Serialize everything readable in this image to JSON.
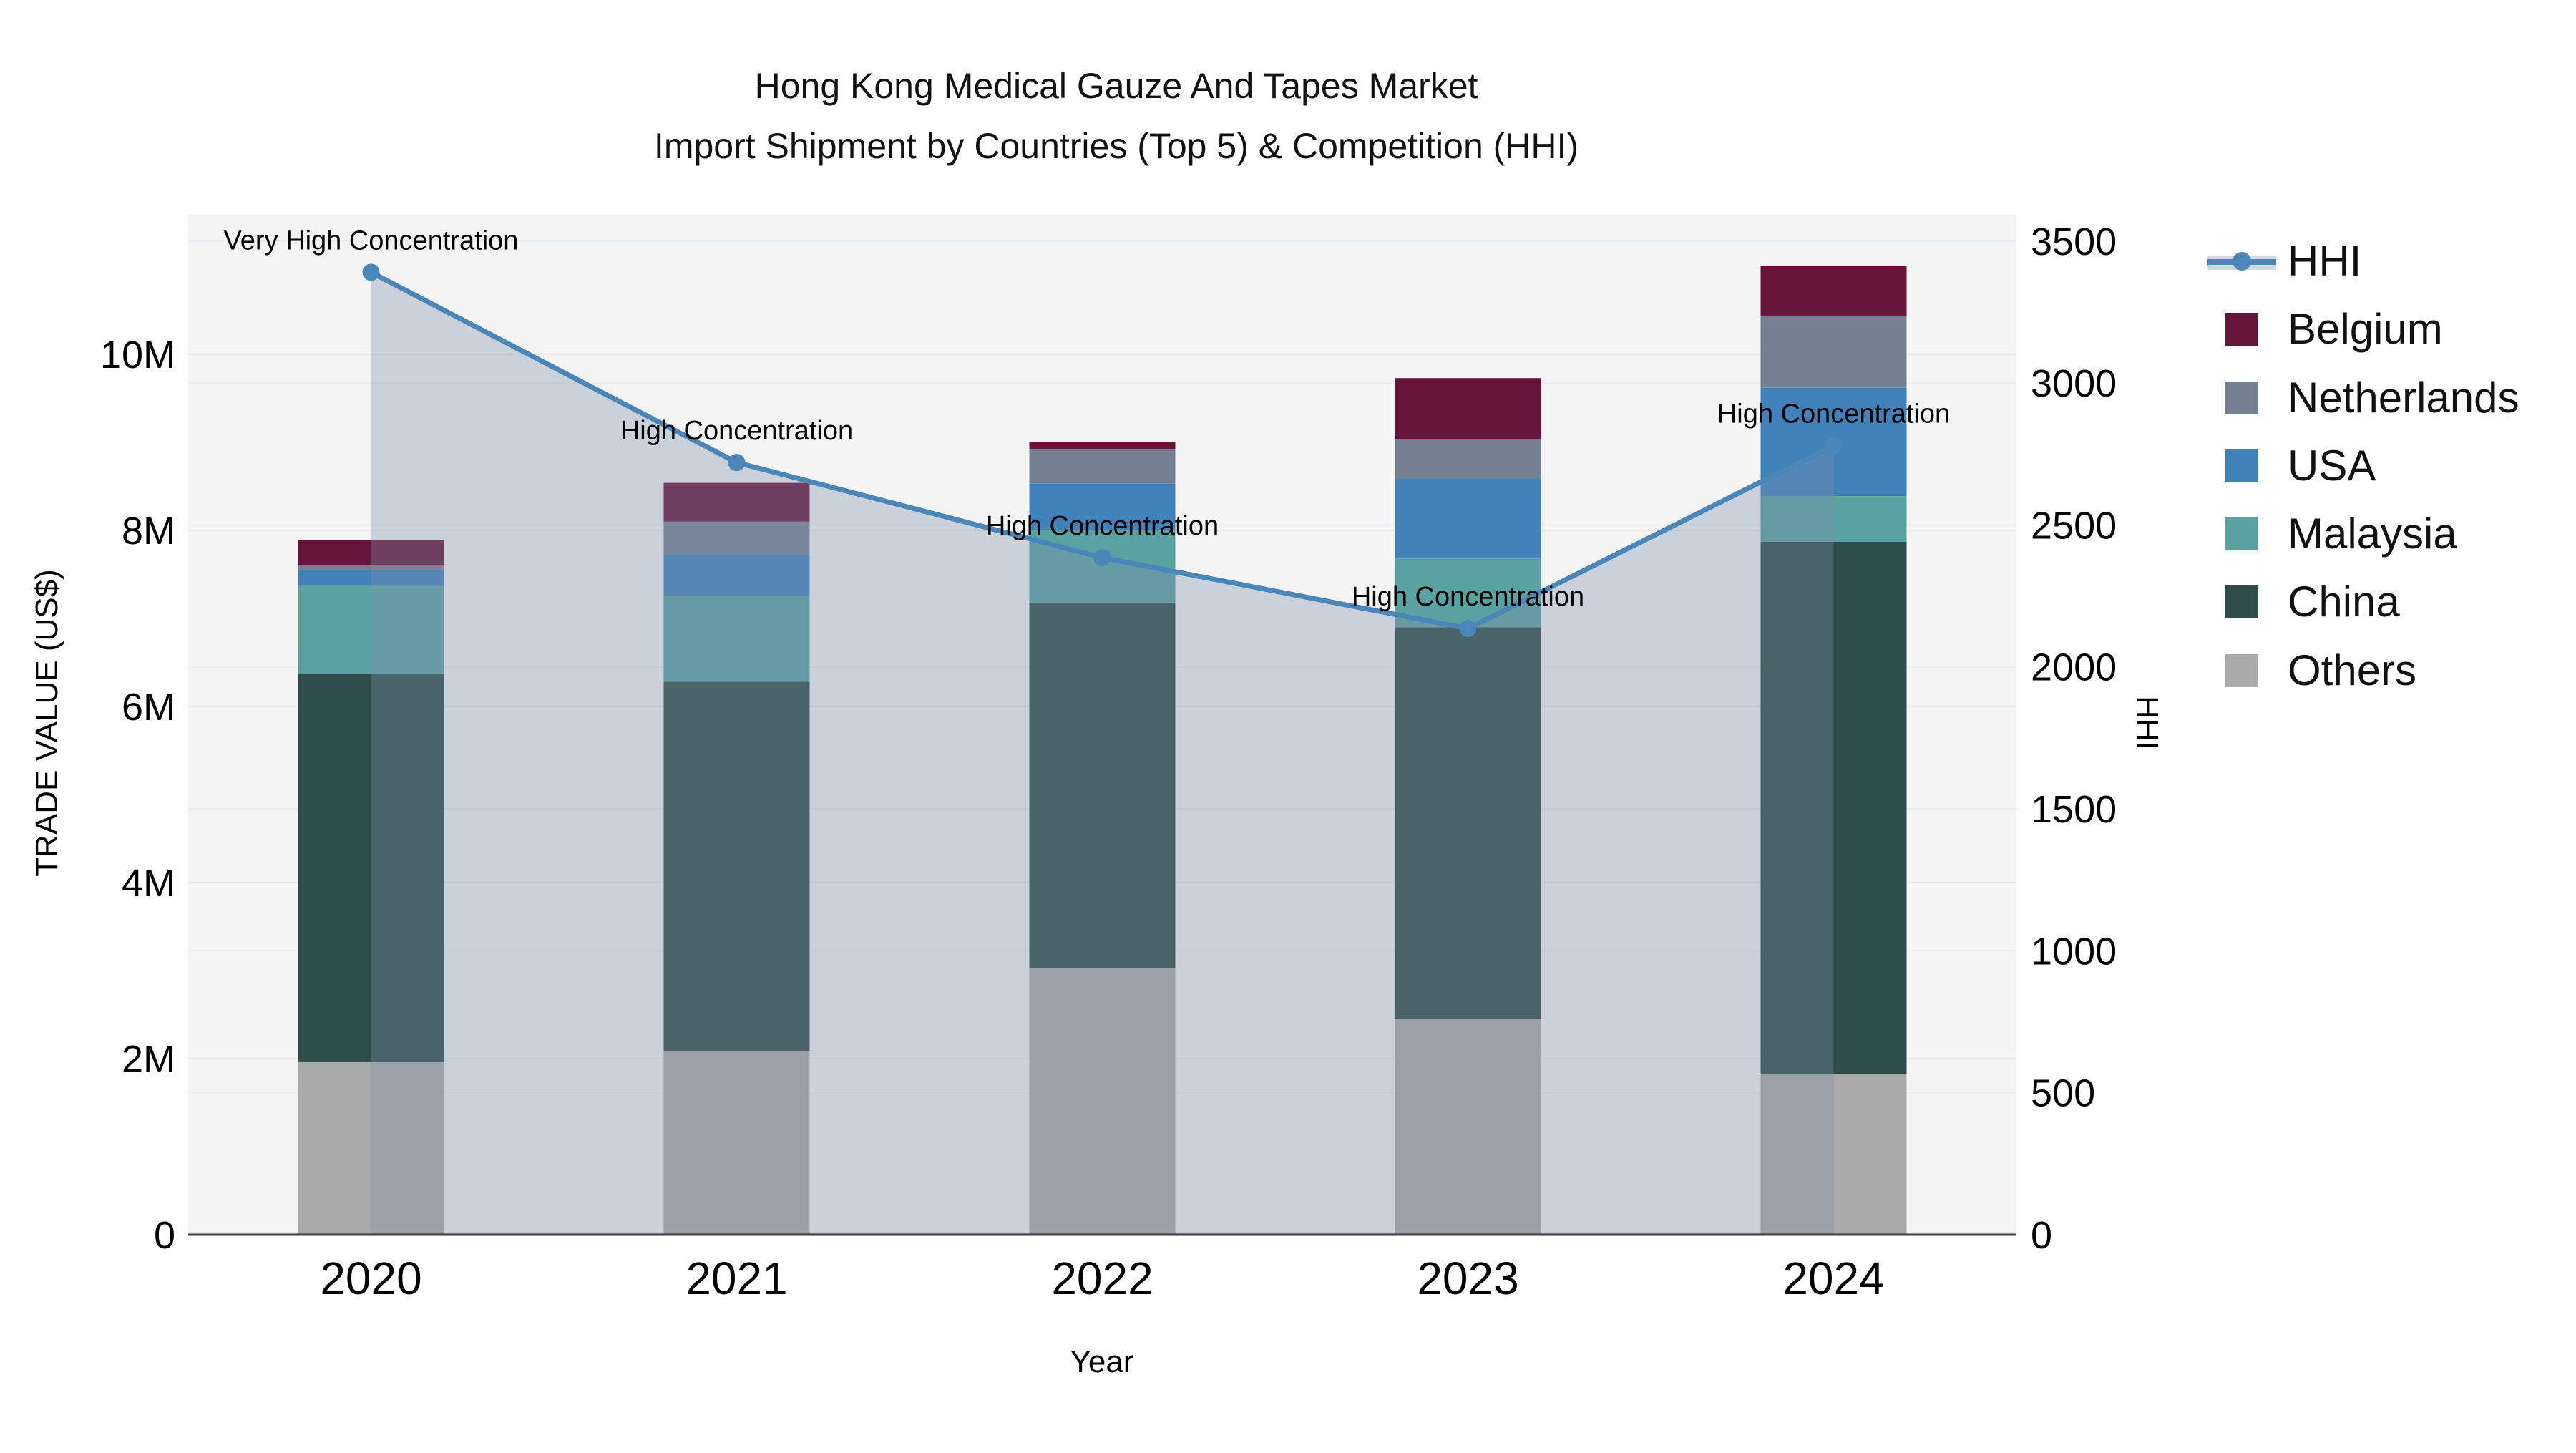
{
  "title": {
    "line1": "Hong Kong Medical Gauze And Tapes Market",
    "line2": "Import Shipment by Countries (Top 5) & Competition (HHI)"
  },
  "axes": {
    "left": {
      "title": "TRADE VALUE (US$)",
      "ticks": [
        {
          "label": "0",
          "value": 0
        },
        {
          "label": "2M",
          "value": 2
        },
        {
          "label": "4M",
          "value": 4
        },
        {
          "label": "6M",
          "value": 6
        },
        {
          "label": "8M",
          "value": 8
        },
        {
          "label": "10M",
          "value": 10
        }
      ]
    },
    "right": {
      "title": "HHI",
      "ticks": [
        {
          "label": "0",
          "value": 0
        },
        {
          "label": "500",
          "value": 500
        },
        {
          "label": "1000",
          "value": 1000
        },
        {
          "label": "1500",
          "value": 1500
        },
        {
          "label": "2000",
          "value": 2000
        },
        {
          "label": "2500",
          "value": 2500
        },
        {
          "label": "3000",
          "value": 3000
        },
        {
          "label": "3500",
          "value": 3500
        }
      ]
    },
    "x": {
      "title": "Year"
    }
  },
  "legend": {
    "items": [
      {
        "label": "HHI",
        "type": "line",
        "color": "#4a86b7"
      },
      {
        "label": "Belgium",
        "type": "square",
        "color": "#67143c"
      },
      {
        "label": "Netherlands",
        "type": "square",
        "color": "#73808f"
      },
      {
        "label": "USA",
        "type": "square",
        "color": "#4182bb"
      },
      {
        "label": "Malaysia",
        "type": "square",
        "color": "#5aa1a2"
      },
      {
        "label": "China",
        "type": "square",
        "color": "#2e4c49"
      },
      {
        "label": "Others",
        "type": "square",
        "color": "#abaaaa"
      }
    ]
  },
  "chart_data": {
    "type": "bar+line",
    "title": "Hong Kong Medical Gauze And Tapes Market — Import Shipment by Countries (Top 5) & Competition (HHI)",
    "categories": [
      "2020",
      "2021",
      "2022",
      "2023",
      "2024"
    ],
    "bar_unit": "M US$",
    "stack_order_bottom_to_top": [
      "Others",
      "China",
      "Malaysia",
      "USA",
      "Netherlands",
      "Belgium"
    ],
    "series": [
      {
        "name": "Others",
        "color": "#abaaaa",
        "values": [
          1.96,
          2.09,
          3.03,
          2.45,
          1.82
        ]
      },
      {
        "name": "China",
        "color": "#2e4c49",
        "values": [
          4.41,
          4.19,
          4.15,
          4.45,
          6.05
        ]
      },
      {
        "name": "Malaysia",
        "color": "#5aa1a2",
        "values": [
          1.01,
          0.98,
          0.82,
          0.78,
          0.52
        ]
      },
      {
        "name": "USA",
        "color": "#4182bb",
        "values": [
          0.17,
          0.47,
          0.53,
          0.91,
          1.23
        ]
      },
      {
        "name": "Netherlands",
        "color": "#73808f",
        "values": [
          0.06,
          0.37,
          0.39,
          0.45,
          0.81
        ]
      },
      {
        "name": "Belgium",
        "color": "#67143c",
        "values": [
          0.28,
          0.44,
          0.08,
          0.69,
          0.57
        ]
      }
    ],
    "bar_totals": [
      7.89,
      8.54,
      9.0,
      9.73,
      11.0
    ],
    "line_series": {
      "name": "HHI",
      "axis": "right",
      "color": "#4a86b7",
      "area_fill": "rgba(125,142,168,0.35)",
      "values": [
        3390,
        2720,
        2385,
        2135,
        2780
      ]
    },
    "annotations": [
      {
        "category": "2020",
        "text": "Very High Concentration"
      },
      {
        "category": "2021",
        "text": "High Concentration"
      },
      {
        "category": "2022",
        "text": "High Concentration"
      },
      {
        "category": "2023",
        "text": "High Concentration"
      },
      {
        "category": "2024",
        "text": "High Concentration"
      }
    ],
    "xlabel": "Year",
    "ylabel_left": "TRADE VALUE (US$)",
    "ylabel_right": "HHI",
    "ylim_left_M": [
      0,
      11.58
    ],
    "ylim_right": [
      0,
      3594
    ],
    "grid": true,
    "legend_position": "right",
    "plot_bg": "#f4f4f4"
  }
}
